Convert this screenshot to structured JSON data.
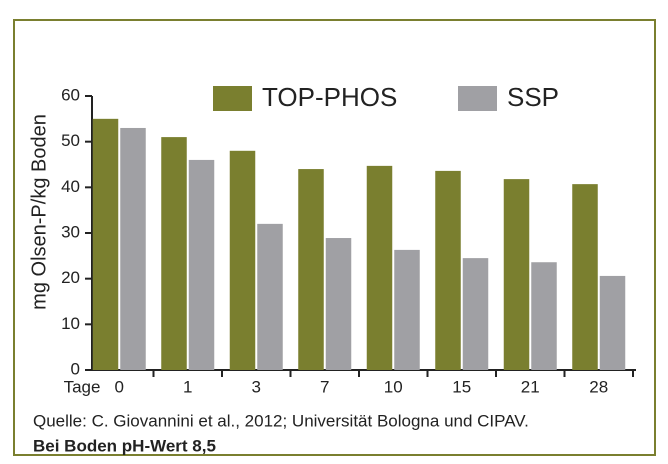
{
  "chart_data": {
    "type": "bar",
    "ylabel": "mg Olsen-P/kg Boden",
    "xlabel": "Tage",
    "categories": [
      "0",
      "1",
      "3",
      "7",
      "10",
      "15",
      "21",
      "28"
    ],
    "series": [
      {
        "name": "TOP-PHOS",
        "color": "#7a7f2f",
        "values": [
          55,
          51,
          48,
          44,
          44.7,
          43.6,
          41.8,
          40.7
        ]
      },
      {
        "name": "SSP",
        "color": "#a0a0a4",
        "values": [
          53,
          46,
          32,
          28.9,
          26.3,
          24.5,
          23.6,
          20.6
        ]
      }
    ],
    "ylim": [
      0,
      60
    ],
    "yticks": [
      0,
      10,
      20,
      30,
      40,
      50,
      60
    ],
    "source": "Quelle: C. Giovannini et al., 2012; Universität Bologna und CIPAV.",
    "note": "Bei Boden pH-Wert 8,5"
  }
}
